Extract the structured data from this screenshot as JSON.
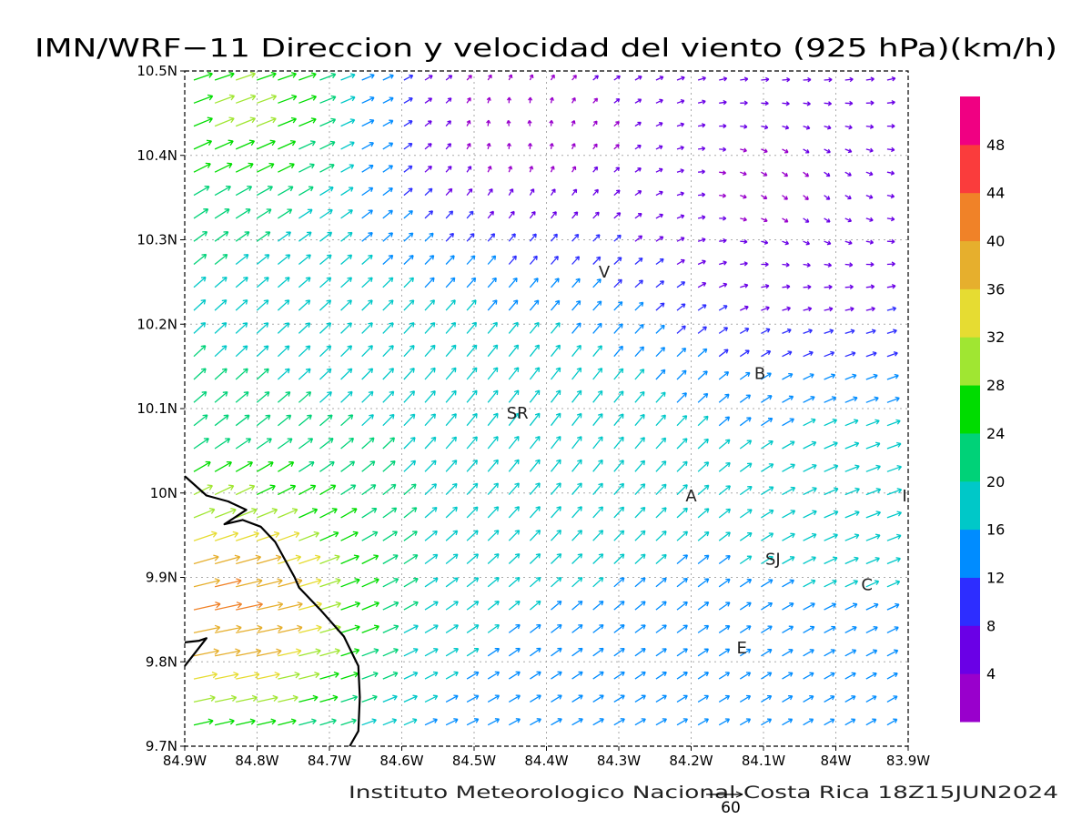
{
  "title": "IMN/WRF−11 Direccion y velocidad del viento (925 hPa)(km/h)",
  "footer": "Instituto Meteorologico Nacional Costa Rica 18Z15JUN2024",
  "reference_vector": {
    "value": "60"
  },
  "map": {
    "lon_range": [
      -84.9,
      -83.9
    ],
    "lat_range": [
      9.7,
      10.5
    ],
    "x_ticks": [
      {
        "value": -84.9,
        "label": "84.9W"
      },
      {
        "value": -84.8,
        "label": "84.8W"
      },
      {
        "value": -84.7,
        "label": "84.7W"
      },
      {
        "value": -84.6,
        "label": "84.6W"
      },
      {
        "value": -84.5,
        "label": "84.5W"
      },
      {
        "value": -84.4,
        "label": "84.4W"
      },
      {
        "value": -84.3,
        "label": "84.3W"
      },
      {
        "value": -84.2,
        "label": "84.2W"
      },
      {
        "value": -84.1,
        "label": "84.1W"
      },
      {
        "value": -84.0,
        "label": "84W"
      },
      {
        "value": -83.9,
        "label": "83.9W"
      }
    ],
    "y_ticks": [
      {
        "value": 9.7,
        "label": "9.7N"
      },
      {
        "value": 9.8,
        "label": "9.8N"
      },
      {
        "value": 9.9,
        "label": "9.9N"
      },
      {
        "value": 10.0,
        "label": "10N"
      },
      {
        "value": 10.1,
        "label": "10.1N"
      },
      {
        "value": 10.2,
        "label": "10.2N"
      },
      {
        "value": 10.3,
        "label": "10.3N"
      },
      {
        "value": 10.4,
        "label": "10.4N"
      },
      {
        "value": 10.5,
        "label": "10.5N"
      }
    ],
    "grid": true,
    "places": [
      {
        "label": "V",
        "lon": -84.32,
        "lat": 10.255
      },
      {
        "label": "SR",
        "lon": -84.44,
        "lat": 10.088
      },
      {
        "label": "B",
        "lon": -84.105,
        "lat": 10.135
      },
      {
        "label": "A",
        "lon": -84.2,
        "lat": 9.99
      },
      {
        "label": "I",
        "lon": -83.905,
        "lat": 9.99
      },
      {
        "label": "SJ",
        "lon": -84.087,
        "lat": 9.915
      },
      {
        "label": "C",
        "lon": -83.957,
        "lat": 9.885
      },
      {
        "label": "E",
        "lon": -84.13,
        "lat": 9.81
      }
    ],
    "coastline": [
      [
        [
          -84.9,
          10.02
        ],
        [
          -84.87,
          9.997
        ],
        [
          -84.84,
          9.99
        ],
        [
          -84.815,
          9.98
        ],
        [
          -84.845,
          9.963
        ],
        [
          -84.82,
          9.968
        ],
        [
          -84.795,
          9.96
        ],
        [
          -84.775,
          9.942
        ],
        [
          -84.748,
          9.9
        ],
        [
          -84.742,
          9.888
        ],
        [
          -84.713,
          9.862
        ],
        [
          -84.68,
          9.83
        ],
        [
          -84.66,
          9.795
        ],
        [
          -84.658,
          9.758
        ],
        [
          -84.66,
          9.718
        ],
        [
          -84.672,
          9.7
        ]
      ],
      [
        [
          -84.9,
          9.795
        ],
        [
          -84.87,
          9.828
        ],
        [
          -84.88,
          9.825
        ],
        [
          -84.9,
          9.823
        ]
      ]
    ]
  },
  "colorbar": {
    "colors": [
      "#9900cc",
      "#6a00e6",
      "#2d2dff",
      "#008cff",
      "#00c8c8",
      "#00d278",
      "#00dc00",
      "#a0e632",
      "#e6dc32",
      "#e6af2d",
      "#f08228",
      "#fa3c3c",
      "#f00082"
    ],
    "labels": [
      "4",
      "8",
      "12",
      "16",
      "20",
      "24",
      "28",
      "32",
      "36",
      "40",
      "44",
      "48"
    ]
  }
}
